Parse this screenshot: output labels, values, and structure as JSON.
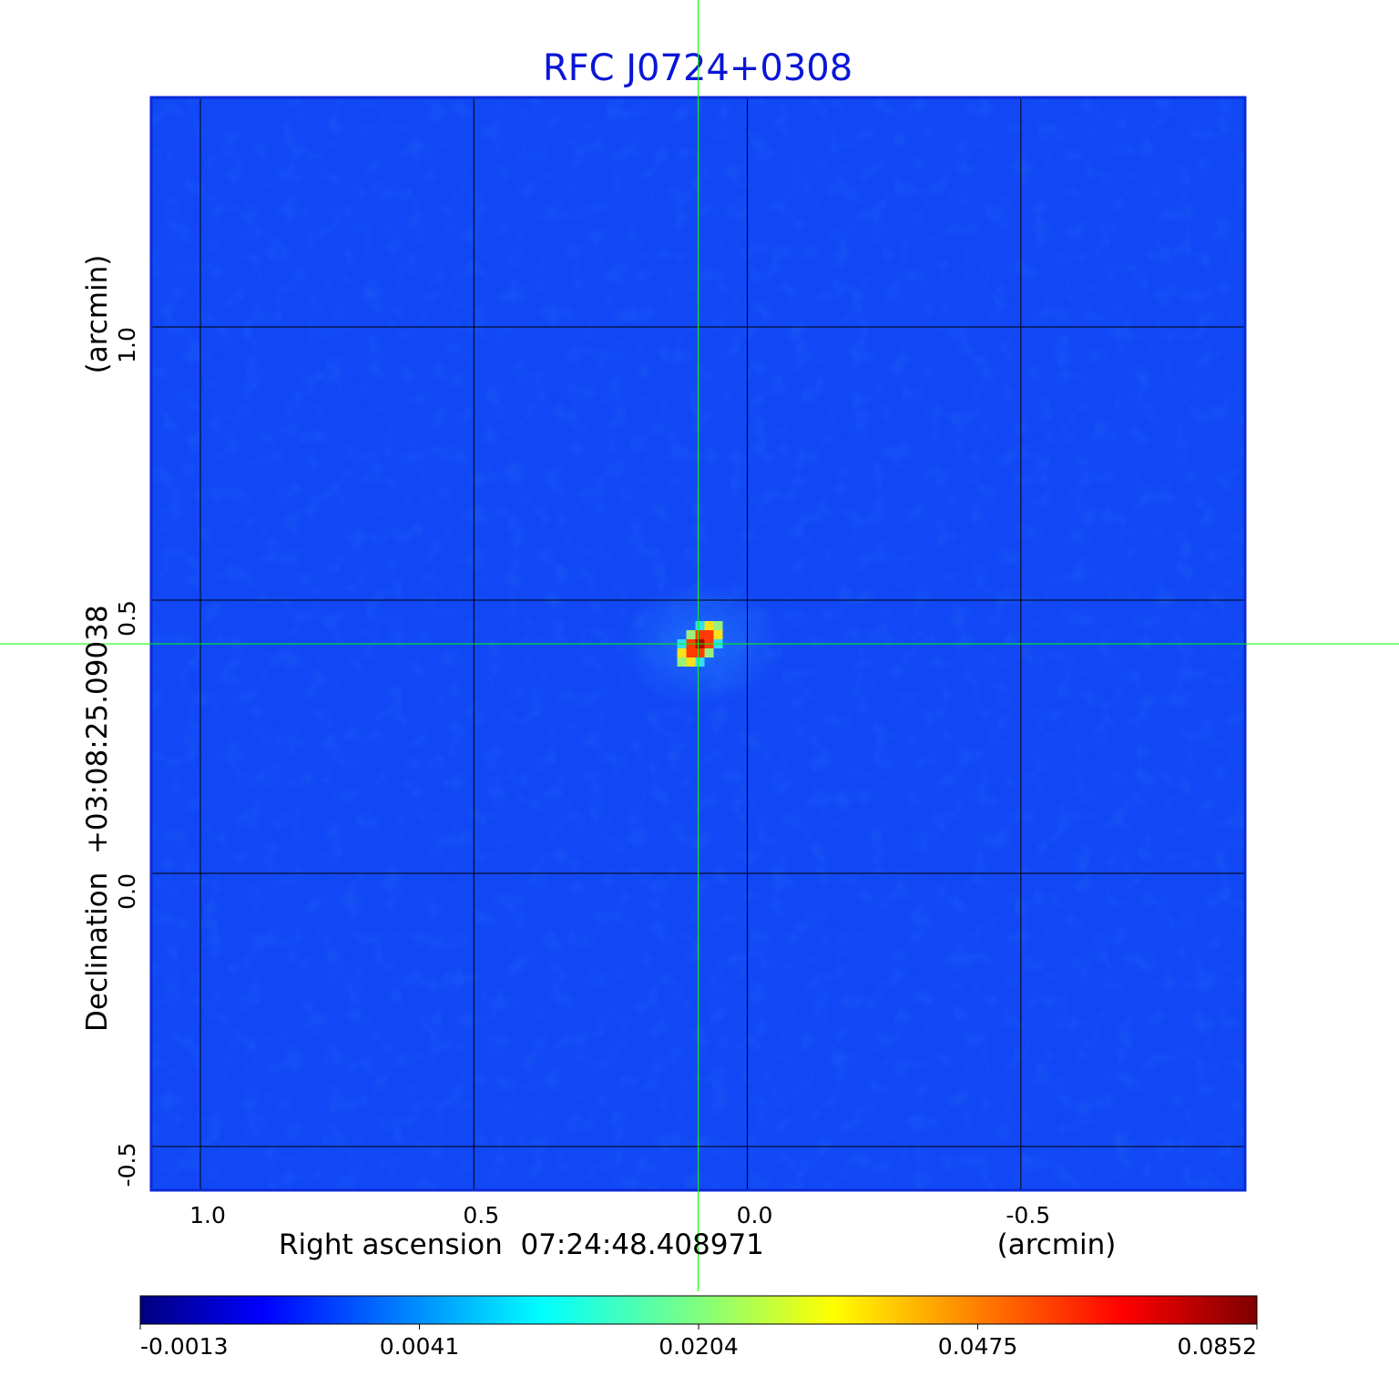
{
  "chart_data": {
    "type": "heatmap",
    "title": "RFC J0724+0308",
    "xlabel": "Right ascension  07:24:48.408971",
    "xunit": "(arcmin)",
    "ylabel": "Declination  +03:08:25.09038",
    "yunit": "(arcmin)",
    "x_ticks": [
      1.0,
      0.5,
      0.0,
      -0.5
    ],
    "x_tick_labels": [
      "1.0",
      "0.5",
      "0.0",
      "-0.5"
    ],
    "y_ticks": [
      1.0,
      0.5,
      0.0,
      -0.5
    ],
    "y_tick_labels": [
      "1.0",
      "0.5",
      "0.0",
      "-0.5"
    ],
    "xlim": [
      1.09,
      -0.91
    ],
    "ylim": [
      -0.58,
      1.42
    ],
    "grid": true,
    "crosshair": {
      "x": 0.09,
      "y": 0.42,
      "color": "#00ff00"
    },
    "source": {
      "x": 0.09,
      "y": 0.42,
      "peak": 0.0852,
      "background": 0.0
    },
    "colorbar": {
      "ticks": [
        -0.0013,
        0.0041,
        0.0204,
        0.0475,
        0.0852
      ],
      "tick_labels": [
        "-0.0013",
        "0.0041",
        "0.0204",
        "0.0475",
        "0.0852"
      ],
      "colormap": "jet"
    },
    "colors": {
      "title": "#0a16d6",
      "background_map": "#0f3ff7",
      "grid": "#000000",
      "crosshair": "#00ff00"
    }
  }
}
